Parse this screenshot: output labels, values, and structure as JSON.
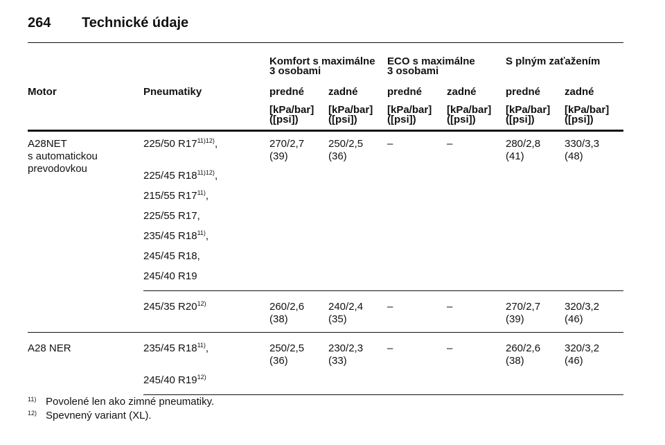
{
  "header": {
    "page_number": "264",
    "title": "Technické údaje"
  },
  "table": {
    "group_headers": [
      [
        "Komfort s maximálne",
        "3 osobami"
      ],
      [
        "ECO s maximálne",
        "3 osobami"
      ],
      [
        "S plným zaťažením"
      ]
    ],
    "columns": [
      "Motor",
      "Pneumatiky",
      "predné",
      "zadné",
      "predné",
      "zadné",
      "predné",
      "zadné"
    ],
    "units": [
      "[kPa/bar]",
      "([psi])"
    ],
    "rows": [
      {
        "motor": [
          "A28NET",
          "s automatickou",
          "prevodovkou"
        ],
        "groups": [
          {
            "tires": [
              {
                "size": "225/50 R17",
                "sup": "11)12)",
                "suffix": ","
              },
              {
                "size": "225/45 R18",
                "sup": "11)12)",
                "suffix": ","
              },
              {
                "size": "215/55 R17",
                "sup": "11)",
                "suffix": ","
              },
              {
                "size": "225/55 R17",
                "suffix": ","
              },
              {
                "size": "235/45 R18",
                "sup": "11)",
                "suffix": ","
              },
              {
                "size": "245/45 R18",
                "suffix": ","
              },
              {
                "size": "245/40 R19"
              }
            ],
            "values": [
              [
                "270/2,7",
                "(39)"
              ],
              [
                "250/2,5",
                "(36)"
              ],
              [
                "–"
              ],
              [
                "–"
              ],
              [
                "280/2,8",
                "(41)"
              ],
              [
                "330/3,3",
                "(48)"
              ]
            ]
          },
          {
            "tires": [
              {
                "size": "245/35 R20",
                "sup": "12)"
              }
            ],
            "values": [
              [
                "260/2,6",
                "(38)"
              ],
              [
                "240/2,4",
                "(35)"
              ],
              [
                "–"
              ],
              [
                "–"
              ],
              [
                "270/2,7",
                "(39)"
              ],
              [
                "320/3,2",
                "(46)"
              ]
            ]
          }
        ]
      },
      {
        "motor": [
          "A28 NER"
        ],
        "groups": [
          {
            "tires": [
              {
                "size": "235/45 R18",
                "sup": "11)",
                "suffix": ","
              },
              {
                "size": "245/40 R19",
                "sup": "12)"
              }
            ],
            "values": [
              [
                "250/2,5",
                "(36)"
              ],
              [
                "230/2,3",
                "(33)"
              ],
              [
                "–"
              ],
              [
                "–"
              ],
              [
                "260/2,6",
                "(38)"
              ],
              [
                "320/3,2",
                "(46)"
              ]
            ]
          }
        ]
      }
    ]
  },
  "footnotes": [
    {
      "mark": "11)",
      "text": "Povolené len ako zimné pneumatiky."
    },
    {
      "mark": "12)",
      "text": "Spevnený variant (XL)."
    }
  ]
}
